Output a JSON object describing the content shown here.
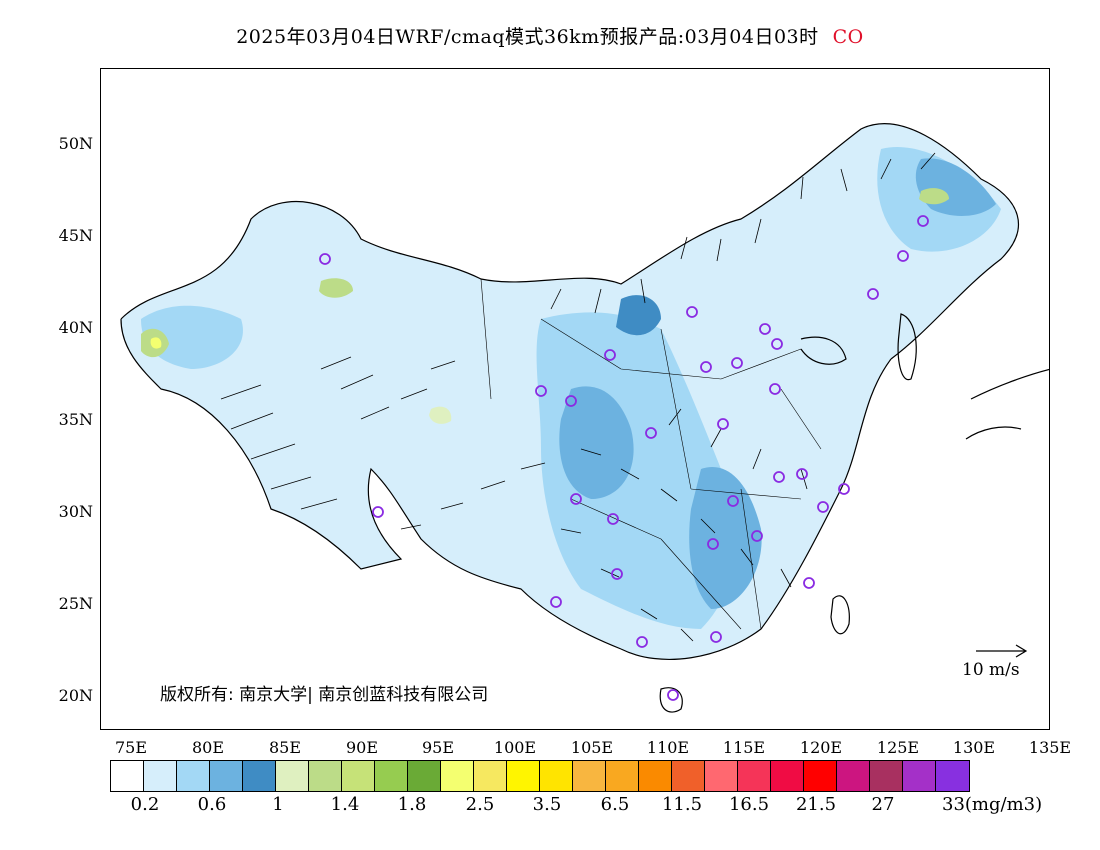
{
  "header": {
    "title": "2025年03月04日WRF/cmaq模式36km预报产品:03月04日03时",
    "species": "CO"
  },
  "credit": "版权所有: 南京大学| 南京创蓝科技有限公司",
  "wind_reference": "10 m/s",
  "axes": {
    "lat_labels": [
      "50N",
      "45N",
      "40N",
      "35N",
      "30N",
      "25N",
      "20N"
    ],
    "lon_labels": [
      "75E",
      "80E",
      "85E",
      "90E",
      "95E",
      "100E",
      "105E",
      "110E",
      "115E",
      "120E",
      "125E",
      "130E",
      "135E"
    ]
  },
  "legend": {
    "colors": [
      "#ffffff",
      "#d6eefb",
      "#a3d8f5",
      "#6cb2e0",
      "#3f8cc4",
      "#dff0c0",
      "#bcdc88",
      "#c6e278",
      "#96cc50",
      "#6aaa36",
      "#f4ff70",
      "#f6e860",
      "#fff500",
      "#ffe400",
      "#f8b640",
      "#f9a820",
      "#fa8a00",
      "#f0602a",
      "#ff6870",
      "#f53458",
      "#f00c44",
      "#ff0000",
      "#cc1580",
      "#a83060",
      "#a430c8",
      "#8830e0"
    ],
    "labels": [
      "0.2",
      "0.6",
      "1",
      "1.4",
      "1.8",
      "2.5",
      "3.5",
      "6.5",
      "11.5",
      "16.5",
      "21.5",
      "27",
      "33(mg/m3)"
    ]
  }
}
